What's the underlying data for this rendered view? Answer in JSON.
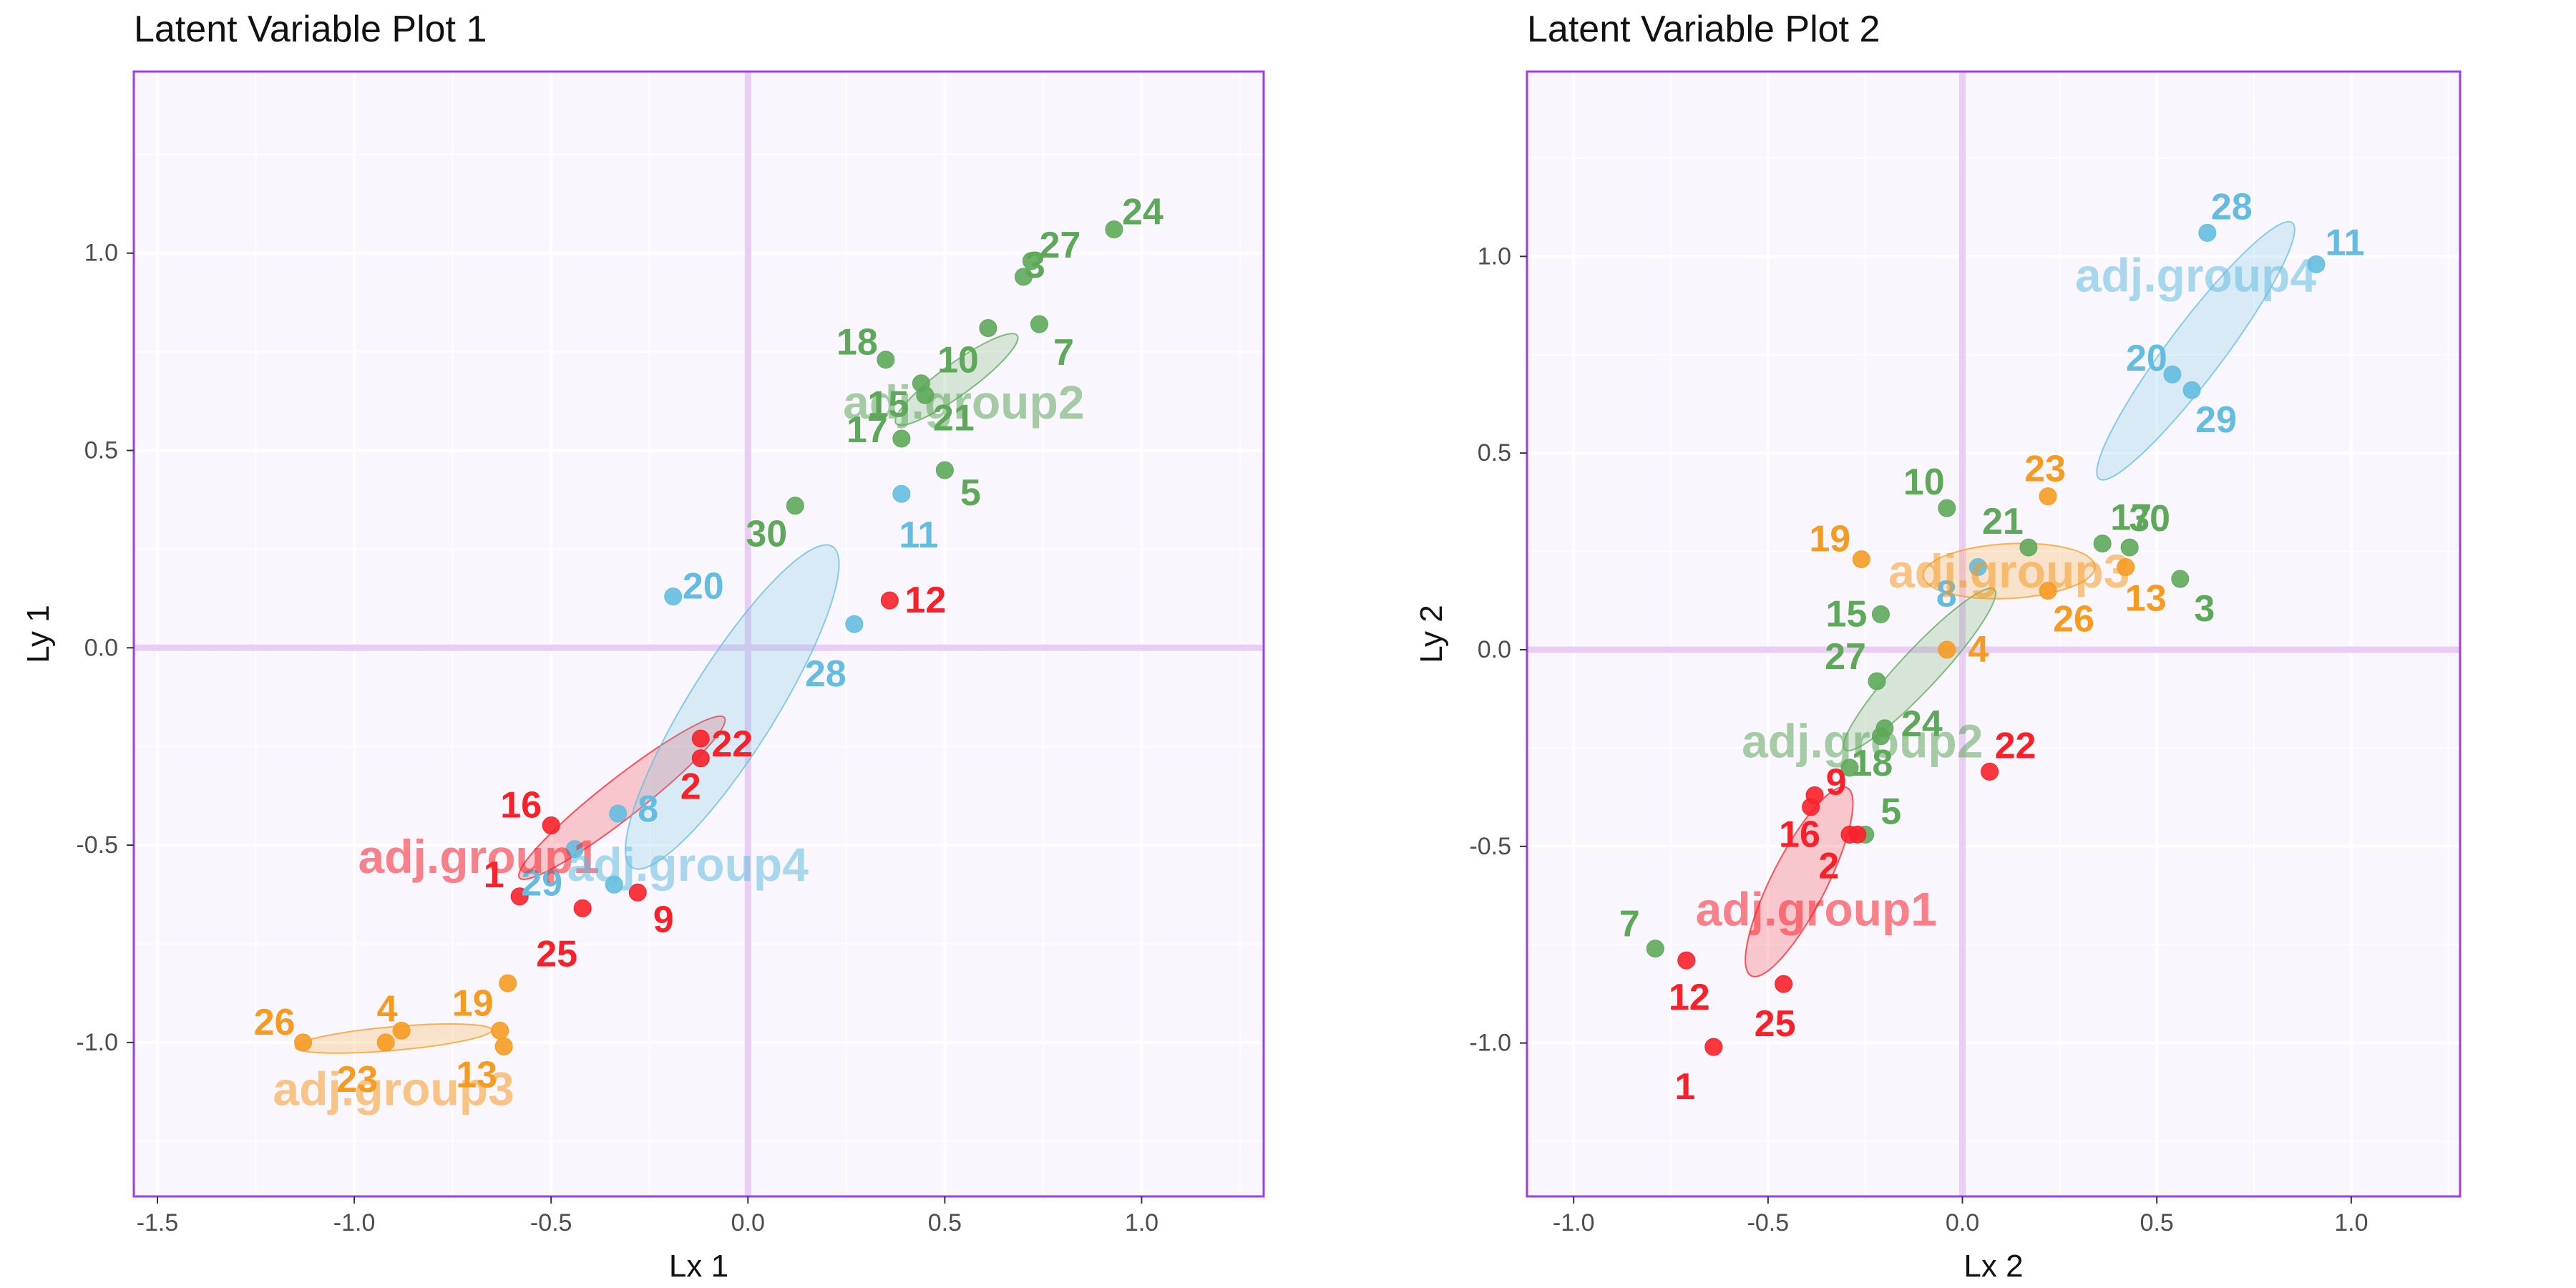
{
  "colors": {
    "group1": "#f8212a",
    "group2": "#5ea85a",
    "group3": "#f59b22",
    "group4": "#64bde0",
    "panel_bg": "#f9f7fd",
    "panel_border": "#9c3fe3",
    "zero_line": "#eacdf5",
    "grid": "#ffffff"
  },
  "chart_data": [
    {
      "type": "scatter",
      "title": "Latent Variable Plot 1",
      "xlabel": "Lx 1",
      "ylabel": "Ly 1",
      "xlim": [
        -1.56,
        1.31
      ],
      "ylim": [
        -1.39,
        1.46
      ],
      "xticks": [
        -1.5,
        -1.0,
        -0.5,
        0.0,
        0.5,
        1.0
      ],
      "xtick_labels": [
        "-1.5",
        "-1.0",
        "-0.5",
        "0.0",
        "0.5",
        "1.0"
      ],
      "yticks": [
        -1.0,
        -0.5,
        0.0,
        0.5,
        1.0
      ],
      "ytick_labels": [
        "-1.0",
        "-0.5",
        "0.0",
        "0.5",
        "1.0"
      ],
      "grid": true,
      "zero_lines": true,
      "points": [
        {
          "label": "24",
          "group": "group2",
          "x": 0.93,
          "y": 1.06
        },
        {
          "label": "27",
          "group": "group2",
          "x": 0.72,
          "y": 0.98
        },
        {
          "label": "3",
          "group": "group2",
          "x": 0.7,
          "y": 0.94
        },
        {
          "label": "7",
          "group": "group2",
          "x": 0.74,
          "y": 0.82
        },
        {
          "label": "10",
          "group": "group2",
          "x": 0.61,
          "y": 0.81
        },
        {
          "label": "18",
          "group": "group2",
          "x": 0.35,
          "y": 0.73
        },
        {
          "label": "15",
          "group": "group2",
          "x": 0.44,
          "y": 0.67
        },
        {
          "label": "21",
          "group": "group2",
          "x": 0.45,
          "y": 0.64
        },
        {
          "label": "17",
          "group": "group2",
          "x": 0.39,
          "y": 0.53
        },
        {
          "label": "5",
          "group": "group2",
          "x": 0.5,
          "y": 0.45
        },
        {
          "label": "30",
          "group": "group2",
          "x": 0.12,
          "y": 0.36
        },
        {
          "label": "11",
          "group": "group4",
          "x": 0.39,
          "y": 0.39
        },
        {
          "label": "12",
          "group": "group1",
          "x": 0.36,
          "y": 0.12
        },
        {
          "label": "20",
          "group": "group4",
          "x": -0.19,
          "y": 0.13
        },
        {
          "label": "28",
          "group": "group4",
          "x": 0.27,
          "y": 0.06
        },
        {
          "label": "22",
          "group": "group1",
          "x": -0.12,
          "y": -0.23
        },
        {
          "label": "2",
          "group": "group1",
          "x": -0.12,
          "y": -0.28
        },
        {
          "label": "8",
          "group": "group4",
          "x": -0.33,
          "y": -0.42
        },
        {
          "label": "16",
          "group": "group1",
          "x": -0.5,
          "y": -0.45
        },
        {
          "label": "29",
          "group": "group4",
          "x": -0.44,
          "y": -0.51
        },
        {
          "label": "1",
          "group": "group1",
          "x": -0.58,
          "y": -0.63
        },
        {
          "label": "25",
          "group": "group1",
          "x": -0.42,
          "y": -0.66
        },
        {
          "label": "9",
          "group": "group1",
          "x": -0.28,
          "y": -0.62
        },
        {
          "label": "",
          "group": "group4",
          "x": -0.34,
          "y": -0.6
        },
        {
          "label": "",
          "group": "group3",
          "x": -0.61,
          "y": -0.85
        },
        {
          "label": "19",
          "group": "group3",
          "x": -0.63,
          "y": -0.97
        },
        {
          "label": "13",
          "group": "group3",
          "x": -0.62,
          "y": -1.01
        },
        {
          "label": "4",
          "group": "group3",
          "x": -0.88,
          "y": -0.97
        },
        {
          "label": "23",
          "group": "group3",
          "x": -0.92,
          "y": -1.0
        },
        {
          "label": "26",
          "group": "group3",
          "x": -1.13,
          "y": -1.0
        }
      ],
      "ellipses": [
        {
          "label": "adj.group1",
          "group": "group1",
          "cx": -0.32,
          "cy": -0.38,
          "rx": 0.33,
          "ry": 0.05,
          "angle_deg": 38
        },
        {
          "label": "adj.group2",
          "group": "group2",
          "cx": 0.53,
          "cy": 0.68,
          "rx": 0.19,
          "ry": 0.04,
          "angle_deg": 36
        },
        {
          "label": "adj.group3",
          "group": "group3",
          "cx": -0.9,
          "cy": -0.99,
          "rx": 0.25,
          "ry": 0.03,
          "angle_deg": 5
        },
        {
          "label": "adj.group4",
          "group": "group4",
          "cx": -0.04,
          "cy": -0.15,
          "rx": 0.48,
          "ry": 0.11,
          "angle_deg": 58
        }
      ]
    },
    {
      "type": "scatter",
      "title": "Latent Variable Plot 2",
      "xlabel": "Lx 2",
      "ylabel": "Ly 2",
      "xlim": [
        -1.12,
        1.28
      ],
      "ylim": [
        -1.39,
        1.47
      ],
      "xticks": [
        -1.0,
        -0.5,
        0.0,
        0.5,
        1.0
      ],
      "xtick_labels": [
        "-1.0",
        "-0.5",
        "0.0",
        "0.5",
        "1.0"
      ],
      "yticks": [
        -1.0,
        -0.5,
        0.0,
        0.5,
        1.0
      ],
      "ytick_labels": [
        "-1.0",
        "-0.5",
        "0.0",
        "0.5",
        "1.0"
      ],
      "grid": true,
      "zero_lines": true,
      "points": [
        {
          "label": "28",
          "group": "group4",
          "x": 0.63,
          "y": 1.06
        },
        {
          "label": "11",
          "group": "group4",
          "x": 0.91,
          "y": 0.98
        },
        {
          "label": "20",
          "group": "group4",
          "x": 0.54,
          "y": 0.7
        },
        {
          "label": "29",
          "group": "group4",
          "x": 0.59,
          "y": 0.66
        },
        {
          "label": "23",
          "group": "group3",
          "x": 0.22,
          "y": 0.39
        },
        {
          "label": "10",
          "group": "group2",
          "x": -0.04,
          "y": 0.36
        },
        {
          "label": "21",
          "group": "group2",
          "x": 0.17,
          "y": 0.26
        },
        {
          "label": "17",
          "group": "group2",
          "x": 0.36,
          "y": 0.27
        },
        {
          "label": "30",
          "group": "group2",
          "x": 0.43,
          "y": 0.26
        },
        {
          "label": "19",
          "group": "group3",
          "x": -0.26,
          "y": 0.23
        },
        {
          "label": "13",
          "group": "group3",
          "x": 0.42,
          "y": 0.21
        },
        {
          "label": "3",
          "group": "group2",
          "x": 0.56,
          "y": 0.18
        },
        {
          "label": "26",
          "group": "group3",
          "x": 0.22,
          "y": 0.15
        },
        {
          "label": "8",
          "group": "group4",
          "x": 0.04,
          "y": 0.21
        },
        {
          "label": "15",
          "group": "group2",
          "x": -0.21,
          "y": 0.09
        },
        {
          "label": "4",
          "group": "group3",
          "x": -0.04,
          "y": 0.0
        },
        {
          "label": "27",
          "group": "group2",
          "x": -0.22,
          "y": -0.08
        },
        {
          "label": "24",
          "group": "group2",
          "x": -0.2,
          "y": -0.2
        },
        {
          "label": "18",
          "group": "group2",
          "x": -0.21,
          "y": -0.22
        },
        {
          "label": "",
          "group": "group2",
          "x": -0.29,
          "y": -0.3
        },
        {
          "label": "22",
          "group": "group1",
          "x": 0.07,
          "y": -0.31
        },
        {
          "label": "9",
          "group": "group1",
          "x": -0.38,
          "y": -0.37
        },
        {
          "label": "",
          "group": "group1",
          "x": -0.39,
          "y": -0.4
        },
        {
          "label": "5",
          "group": "group2",
          "x": -0.25,
          "y": -0.47
        },
        {
          "label": "16",
          "group": "group1",
          "x": -0.29,
          "y": -0.47
        },
        {
          "label": "2",
          "group": "group1",
          "x": -0.27,
          "y": -0.47
        },
        {
          "label": "7",
          "group": "group2",
          "x": -0.79,
          "y": -0.76
        },
        {
          "label": "12",
          "group": "group1",
          "x": -0.71,
          "y": -0.79
        },
        {
          "label": "25",
          "group": "group1",
          "x": -0.46,
          "y": -0.85
        },
        {
          "label": "1",
          "group": "group1",
          "x": -0.64,
          "y": -1.01
        }
      ],
      "ellipses": [
        {
          "label": "adj.group1",
          "group": "group1",
          "cx": -0.42,
          "cy": -0.59,
          "rx": 0.27,
          "ry": 0.07,
          "angle_deg": 63
        },
        {
          "label": "adj.group2",
          "group": "group2",
          "cx": -0.11,
          "cy": -0.05,
          "rx": 0.28,
          "ry": 0.05,
          "angle_deg": 47
        },
        {
          "label": "adj.group3",
          "group": "group3",
          "cx": 0.12,
          "cy": 0.2,
          "rx": 0.22,
          "ry": 0.07,
          "angle_deg": 3
        },
        {
          "label": "adj.group4",
          "group": "group4",
          "cx": 0.6,
          "cy": 0.76,
          "rx": 0.41,
          "ry": 0.07,
          "angle_deg": 53
        }
      ]
    }
  ]
}
